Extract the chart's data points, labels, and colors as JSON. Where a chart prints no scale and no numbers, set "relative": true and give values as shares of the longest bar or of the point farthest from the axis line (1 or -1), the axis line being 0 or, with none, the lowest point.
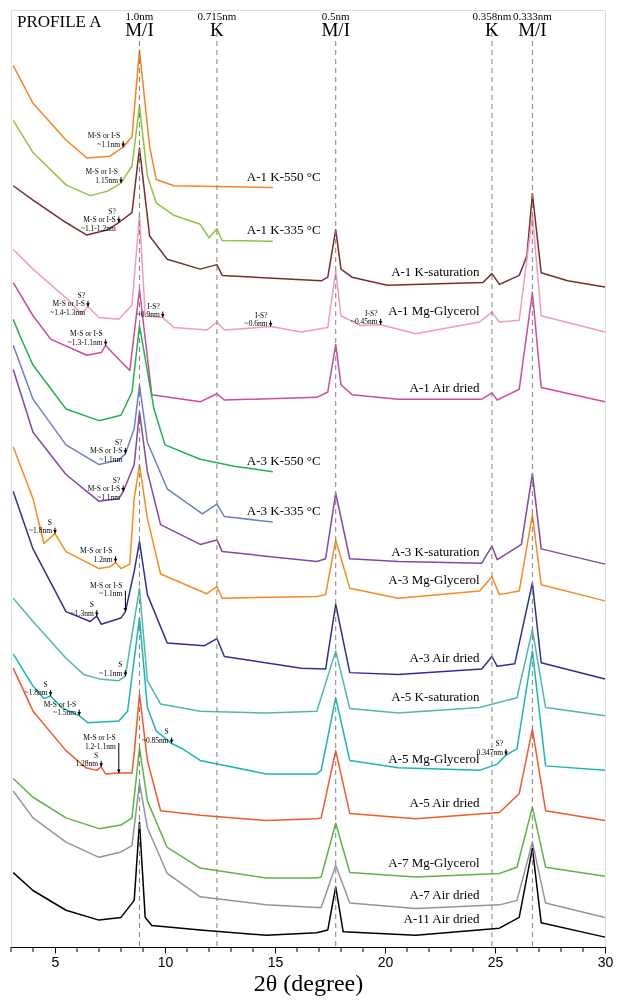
{
  "chart_data": {
    "type": "line",
    "title": "PROFILE A",
    "xlabel": "2θ (degree)",
    "relative": true,
    "grid": false,
    "line_style": "solid",
    "xlim": [
      3,
      30
    ],
    "xticks": [
      {
        "value": 3,
        "label": null
      },
      {
        "value": 4,
        "label": null
      },
      5,
      {
        "value": 6,
        "label": null
      },
      {
        "value": 7,
        "label": null
      },
      {
        "value": 8,
        "label": null
      },
      {
        "value": 9,
        "label": null
      },
      10,
      {
        "value": 11,
        "label": null
      },
      {
        "value": 12,
        "label": null
      },
      {
        "value": 13,
        "label": null
      },
      {
        "value": 14,
        "label": null
      },
      15,
      {
        "value": 16,
        "label": null
      },
      {
        "value": 17,
        "label": null
      },
      {
        "value": 18,
        "label": null
      },
      {
        "value": 19,
        "label": null
      },
      20,
      {
        "value": 21,
        "label": null
      },
      {
        "value": 22,
        "label": null
      },
      {
        "value": 23,
        "label": null
      },
      {
        "value": 24,
        "label": null
      },
      25,
      {
        "value": 26,
        "label": null
      },
      {
        "value": 27,
        "label": null
      },
      {
        "value": 28,
        "label": null
      },
      {
        "value": 29,
        "label": null
      },
      30
    ],
    "ref_lines": [
      {
        "axis": "x",
        "value": 8.84,
        "label": "1.0nm\nM/I",
        "color": "#808080",
        "line_style": "dashed"
      },
      {
        "axis": "x",
        "value": 12.36,
        "label": "0.715nm\nK",
        "color": "#808080",
        "line_style": "dashed"
      },
      {
        "axis": "x",
        "value": 17.76,
        "label": "0.5nm\nM/I",
        "color": "#808080",
        "line_style": "dashed"
      },
      {
        "axis": "x",
        "value": 24.86,
        "label": "0.358nm\nK",
        "color": "#808080",
        "line_style": "dashed"
      },
      {
        "axis": "x",
        "value": 26.7,
        "label": "0.333nm\nM/I",
        "color": "#808080",
        "line_style": "dashed"
      }
    ],
    "series": [
      {
        "name": "A-1 K-550 °C",
        "color": "#f7821f",
        "x": [
          3.1,
          4.0,
          5.5,
          6.45,
          7.5,
          8.1,
          8.5,
          8.84,
          9.3,
          9.6,
          10.4,
          14.9
        ],
        "values": [
          0.983,
          0.941,
          0.9,
          0.88,
          0.882,
          0.892,
          0.904,
          1.0,
          0.893,
          0.856,
          0.849,
          0.847
        ]
      },
      {
        "name": "A-1 K-335 °C",
        "color": "#8cc63f",
        "x": [
          3.1,
          4.0,
          5.5,
          6.6,
          7.4,
          8.0,
          8.5,
          8.84,
          9.2,
          9.6,
          10.4,
          11.6,
          12.0,
          12.36,
          12.6,
          14.9
        ],
        "values": [
          0.922,
          0.886,
          0.85,
          0.838,
          0.843,
          0.852,
          0.871,
          0.938,
          0.86,
          0.83,
          0.816,
          0.806,
          0.791,
          0.801,
          0.788,
          0.787
        ]
      },
      {
        "name": "A-1 K-saturation",
        "color": "#7a2e2b",
        "x": [
          3.1,
          4.0,
          5.5,
          6.45,
          7.4,
          7.9,
          8.5,
          8.84,
          9.3,
          10.1,
          11.6,
          12.36,
          12.6,
          17.1,
          17.4,
          17.76,
          18.0,
          18.5,
          20.1,
          24.45,
          24.86,
          25.2,
          26.1,
          26.45,
          26.7,
          27.1,
          28.3,
          30
        ],
        "values": [
          0.849,
          0.833,
          0.808,
          0.794,
          0.8,
          0.808,
          0.819,
          0.891,
          0.793,
          0.767,
          0.756,
          0.761,
          0.749,
          0.743,
          0.747,
          0.8,
          0.756,
          0.747,
          0.738,
          0.741,
          0.751,
          0.739,
          0.749,
          0.771,
          0.84,
          0.752,
          0.743,
          0.736
        ]
      },
      {
        "name": "A-1 Mg-Glycerol",
        "color": "#f49ac1",
        "x": [
          3.1,
          4.0,
          5.5,
          6.2,
          6.5,
          7.0,
          7.9,
          8.5,
          8.84,
          9.1,
          9.9,
          10.4,
          11.9,
          12.36,
          12.7,
          14.8,
          16.2,
          17.4,
          17.76,
          18.0,
          18.9,
          19.8,
          21.4,
          24.3,
          24.86,
          25.2,
          26.1,
          26.7,
          27.1,
          30
        ],
        "values": [
          0.778,
          0.756,
          0.724,
          0.706,
          0.714,
          0.702,
          0.7,
          0.716,
          0.816,
          0.704,
          0.702,
          0.691,
          0.688,
          0.697,
          0.688,
          0.692,
          0.686,
          0.691,
          0.754,
          0.704,
          0.693,
          0.694,
          0.684,
          0.697,
          0.708,
          0.697,
          0.699,
          0.816,
          0.704,
          0.686
        ]
      },
      {
        "name": "A-1 Air dried",
        "color": "#cc4b9f",
        "x": [
          3.1,
          4.0,
          4.8,
          6.45,
          7.1,
          7.3,
          7.6,
          8.4,
          8.84,
          9.4,
          11.6,
          12.36,
          12.7,
          16.9,
          17.4,
          17.76,
          18.0,
          18.5,
          20.6,
          24.4,
          24.86,
          25.1,
          26.1,
          26.7,
          27.1,
          30
        ],
        "values": [
          0.741,
          0.704,
          0.678,
          0.66,
          0.663,
          0.671,
          0.663,
          0.643,
          0.733,
          0.616,
          0.608,
          0.617,
          0.61,
          0.613,
          0.619,
          0.672,
          0.627,
          0.616,
          0.611,
          0.611,
          0.618,
          0.61,
          0.622,
          0.73,
          0.624,
          0.608
        ]
      },
      {
        "name": "A-3 K-550 °C",
        "color": "#21b24b",
        "x": [
          3.1,
          3.4,
          4.0,
          5.5,
          7.0,
          8.0,
          8.5,
          8.84,
          9.5,
          10.0,
          11.6,
          13.2,
          14.9
        ],
        "values": [
          0.7,
          0.682,
          0.649,
          0.6,
          0.587,
          0.593,
          0.619,
          0.693,
          0.6,
          0.56,
          0.544,
          0.536,
          0.53
        ]
      },
      {
        "name": "A-3 K-335 °C",
        "color": "#6d7fc7",
        "x": [
          3.1,
          4.0,
          5.5,
          7.0,
          7.9,
          8.2,
          8.6,
          8.84,
          9.2,
          10.1,
          11.7,
          12.36,
          12.7,
          14.9
        ],
        "values": [
          0.671,
          0.611,
          0.56,
          0.538,
          0.543,
          0.55,
          0.578,
          0.627,
          0.563,
          0.511,
          0.483,
          0.494,
          0.48,
          0.474
        ]
      },
      {
        "name": "A-3 K-saturation",
        "color": "#8347a5",
        "x": [
          3.1,
          4.0,
          5.5,
          7.0,
          7.9,
          8.1,
          8.6,
          8.84,
          9.2,
          9.8,
          11.6,
          12.36,
          12.6,
          16.9,
          17.3,
          17.76,
          18.4,
          20.6,
          24.4,
          24.86,
          25.1,
          26.2,
          26.7,
          27.1,
          30
        ],
        "values": [
          0.644,
          0.574,
          0.527,
          0.497,
          0.5,
          0.508,
          0.538,
          0.597,
          0.53,
          0.471,
          0.449,
          0.454,
          0.441,
          0.43,
          0.433,
          0.506,
          0.433,
          0.43,
          0.428,
          0.447,
          0.432,
          0.449,
          0.528,
          0.444,
          0.427
        ]
      },
      {
        "name": "A-3 Mg-Glycerol",
        "color": "#f68b1f",
        "x": [
          3.1,
          4.0,
          4.5,
          5.0,
          5.5,
          7.0,
          7.5,
          7.75,
          8.0,
          8.4,
          8.6,
          8.84,
          9.2,
          9.8,
          11.9,
          12.36,
          12.6,
          16.9,
          17.3,
          17.76,
          18.4,
          20.6,
          24.3,
          24.86,
          25.2,
          26.1,
          26.7,
          27.1,
          30
        ],
        "values": [
          0.558,
          0.5,
          0.45,
          0.461,
          0.441,
          0.422,
          0.424,
          0.429,
          0.422,
          0.427,
          0.5,
          0.538,
          0.478,
          0.416,
          0.394,
          0.402,
          0.389,
          0.391,
          0.393,
          0.454,
          0.4,
          0.389,
          0.397,
          0.413,
          0.393,
          0.397,
          0.482,
          0.404,
          0.386
        ]
      },
      {
        "name": "A-3 Air dried",
        "color": "#2e3192",
        "x": [
          3.1,
          4.0,
          5.5,
          6.6,
          6.9,
          7.1,
          8.0,
          8.2,
          8.6,
          8.84,
          9.2,
          10.1,
          11.8,
          12.36,
          12.7,
          16.2,
          17.3,
          17.76,
          18.4,
          20.6,
          24.4,
          24.86,
          25.1,
          25.9,
          26.7,
          27.1,
          30
        ],
        "values": [
          0.508,
          0.444,
          0.374,
          0.363,
          0.369,
          0.36,
          0.367,
          0.374,
          0.419,
          0.452,
          0.393,
          0.339,
          0.336,
          0.344,
          0.324,
          0.311,
          0.31,
          0.382,
          0.306,
          0.304,
          0.31,
          0.324,
          0.313,
          0.316,
          0.406,
          0.317,
          0.299
        ]
      },
      {
        "name": "A-5 K-saturation",
        "color": "#4fb8ad",
        "x": [
          3.1,
          4.0,
          5.5,
          6.3,
          7.0,
          7.9,
          8.2,
          8.84,
          9.2,
          9.8,
          11.6,
          14.6,
          16.9,
          17.76,
          18.4,
          20.6,
          24.3,
          26.0,
          26.7,
          27.3,
          30
        ],
        "values": [
          0.389,
          0.363,
          0.322,
          0.304,
          0.299,
          0.297,
          0.302,
          0.4,
          0.297,
          0.271,
          0.263,
          0.261,
          0.263,
          0.33,
          0.266,
          0.261,
          0.267,
          0.278,
          0.354,
          0.267,
          0.258
        ]
      },
      {
        "name": "A-5 Mg-Glycerol",
        "color": "#1db4b4",
        "x": [
          3.1,
          4.0,
          4.5,
          4.8,
          5.3,
          6.1,
          6.5,
          7.9,
          8.3,
          8.84,
          9.2,
          9.6,
          10.3,
          10.8,
          11.6,
          14.6,
          16.9,
          17.1,
          17.76,
          18.4,
          20.6,
          24.3,
          25.1,
          25.5,
          26.0,
          26.7,
          27.3,
          30
        ],
        "values": [
          0.327,
          0.291,
          0.277,
          0.28,
          0.267,
          0.258,
          0.25,
          0.252,
          0.263,
          0.367,
          0.267,
          0.241,
          0.227,
          0.221,
          0.208,
          0.193,
          0.193,
          0.197,
          0.278,
          0.208,
          0.2,
          0.197,
          0.204,
          0.214,
          0.221,
          0.33,
          0.202,
          0.197
        ]
      },
      {
        "name": "A-5 Air dried",
        "color": "#f15a2b",
        "x": [
          3.1,
          4.0,
          5.5,
          6.4,
          6.9,
          7.1,
          7.3,
          7.9,
          8.5,
          8.6,
          8.84,
          9.2,
          9.8,
          11.6,
          14.6,
          16.9,
          17.1,
          17.76,
          18.4,
          21.4,
          25.2,
          26.1,
          26.7,
          27.3,
          30
        ],
        "values": [
          0.311,
          0.263,
          0.219,
          0.2,
          0.197,
          0.201,
          0.193,
          0.194,
          0.194,
          0.216,
          0.282,
          0.208,
          0.152,
          0.147,
          0.141,
          0.143,
          0.144,
          0.219,
          0.149,
          0.143,
          0.15,
          0.171,
          0.243,
          0.152,
          0.141
        ]
      },
      {
        "name": "A-7 Mg-Glycerol",
        "color": "#5db446",
        "x": [
          3.1,
          4.0,
          5.5,
          7.0,
          8.0,
          8.5,
          8.84,
          9.2,
          10.1,
          11.6,
          14.6,
          16.9,
          17.1,
          17.76,
          18.4,
          21.4,
          25.2,
          26.0,
          26.7,
          27.3,
          30
        ],
        "values": [
          0.188,
          0.167,
          0.144,
          0.132,
          0.136,
          0.144,
          0.222,
          0.163,
          0.111,
          0.088,
          0.077,
          0.077,
          0.078,
          0.138,
          0.083,
          0.078,
          0.082,
          0.089,
          0.156,
          0.089,
          0.079
        ]
      },
      {
        "name": "A-7 Air dried",
        "color": "#939598",
        "x": [
          3.1,
          4.0,
          5.5,
          7.0,
          8.0,
          8.5,
          8.84,
          9.2,
          10.1,
          11.6,
          14.6,
          16.9,
          17.1,
          17.76,
          18.4,
          21.4,
          25.2,
          26.0,
          26.7,
          27.3,
          30
        ],
        "values": [
          0.174,
          0.144,
          0.117,
          0.1,
          0.106,
          0.113,
          0.183,
          0.133,
          0.082,
          0.056,
          0.047,
          0.044,
          0.044,
          0.091,
          0.049,
          0.043,
          0.047,
          0.052,
          0.117,
          0.049,
          0.033
        ]
      },
      {
        "name": "A-11 Air dried",
        "color": "#000000",
        "x": [
          3.1,
          4.0,
          5.5,
          7.0,
          8.0,
          8.6,
          8.84,
          9.1,
          9.4,
          11.6,
          14.6,
          16.9,
          17.4,
          17.76,
          18.1,
          21.4,
          25.2,
          26.1,
          26.7,
          27.1,
          30
        ],
        "values": [
          0.083,
          0.063,
          0.041,
          0.03,
          0.033,
          0.052,
          0.139,
          0.033,
          0.024,
          0.019,
          0.013,
          0.016,
          0.019,
          0.067,
          0.017,
          0.013,
          0.021,
          0.033,
          0.11,
          0.027,
          0.011
        ]
      }
    ],
    "annotations": [
      {
        "text": "M-S or I-S\n~1.1nm",
        "x": 8.1,
        "y": 0.892
      },
      {
        "text": "M-S or I-S\n1.15nm",
        "x": 8.0,
        "y": 0.852
      },
      {
        "text": "S?\nM-S or I-S\n~1.1-1.2nm",
        "x": 7.9,
        "y": 0.808
      },
      {
        "text": "S?\nM-S or I-S\n~1.4-1.3nm",
        "x": 6.5,
        "y": 0.714
      },
      {
        "text": "I-S?\n~0.9nm",
        "x": 9.9,
        "y": 0.702
      },
      {
        "text": "I-S?\n~0.6nm",
        "x": 14.8,
        "y": 0.692
      },
      {
        "text": "I-S?\n~0.45nm",
        "x": 19.8,
        "y": 0.694
      },
      {
        "text": "M-S or I-S\n~1.3-1.1nm",
        "x": 7.3,
        "y": 0.671
      },
      {
        "text": "S?\nM-S or I-S\n~1.1nm",
        "x": 8.2,
        "y": 0.55
      },
      {
        "text": "S?\nM-S or I-S\n~1.1nm",
        "x": 8.1,
        "y": 0.508
      },
      {
        "text": "S\n~1.8nm",
        "x": 5.0,
        "y": 0.461
      },
      {
        "text": "M-S or I-S\n1.2nm",
        "x": 7.75,
        "y": 0.429
      },
      {
        "text": "S\n~1.3nm",
        "x": 6.9,
        "y": 0.369
      },
      {
        "text": "M-S or I-S\n~1.1nm",
        "x": 8.2,
        "y": 0.374
      },
      {
        "text": "S\n~1.1nm",
        "x": 8.2,
        "y": 0.302
      },
      {
        "text": "S\n~1.8nm",
        "x": 4.8,
        "y": 0.28
      },
      {
        "text": "M-S or I-S\n~1.5nm",
        "x": 6.1,
        "y": 0.258
      },
      {
        "text": "S\n~0.85nm",
        "x": 10.3,
        "y": 0.227
      },
      {
        "text": "S?\n0.347nm",
        "x": 25.5,
        "y": 0.214
      },
      {
        "text": "S\n1.28nm",
        "x": 7.1,
        "y": 0.201
      },
      {
        "text": "M-S or I-S\n1.2-1.1nm",
        "x": 7.9,
        "y": 0.194
      }
    ]
  }
}
